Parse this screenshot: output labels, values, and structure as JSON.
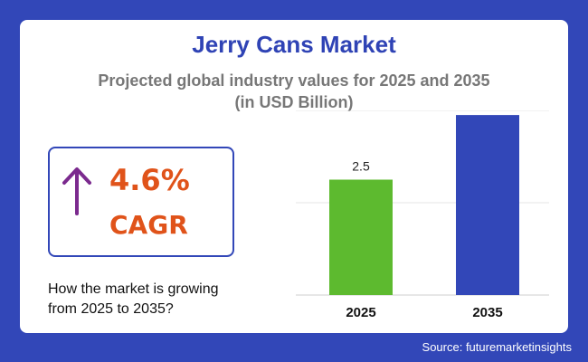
{
  "title": "Jerry Cans Market",
  "subtitle_line1": "Projected global industry values for 2025 and 2035",
  "subtitle_line2": "(in USD Billion)",
  "cagr": {
    "value": "4.6%",
    "label": "CAGR",
    "arrow_icon": "arrow-up-icon"
  },
  "question_line1": "How the market is growing",
  "question_line2": "from 2025 to 2035?",
  "source": "Source: futuremarketinsights",
  "colors": {
    "background": "#3247b8",
    "title": "#2f43b5",
    "cagr_text": "#e0531a",
    "arrow": "#7b2a8e",
    "bar_2025": "#5dba2f",
    "bar_2035": "#3247b8"
  },
  "chart_data": {
    "type": "bar",
    "categories": [
      "2025",
      "2035"
    ],
    "values": [
      2.5,
      3.9
    ],
    "data_labels": [
      "2.5",
      "3.9"
    ],
    "ylim": [
      0,
      4
    ],
    "grid": true,
    "legend": "none"
  }
}
